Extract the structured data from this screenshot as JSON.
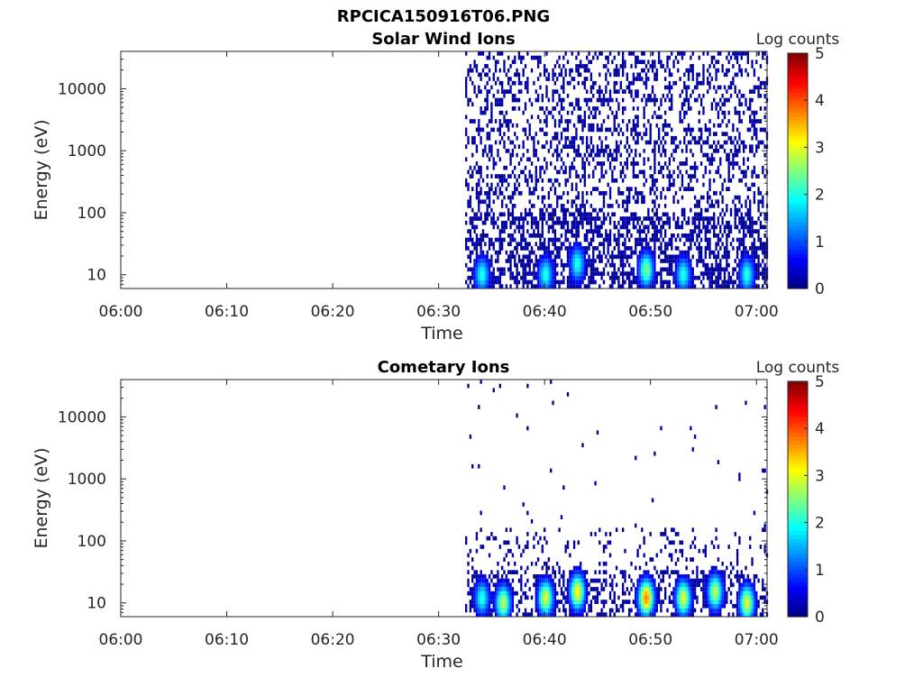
{
  "figure": {
    "title": "RPCICA150916T06.PNG"
  },
  "chart_data": [
    {
      "type": "heatmap",
      "title": "Solar Wind Ions",
      "xlabel": "Time",
      "ylabel": "Energy (eV)",
      "x_range": [
        "06:00",
        "07:01"
      ],
      "x_ticks": [
        "06:00",
        "06:10",
        "06:20",
        "06:30",
        "06:40",
        "06:50",
        "07:00"
      ],
      "y_scale": "log",
      "y_range": [
        6,
        40000
      ],
      "y_ticks": [
        "10",
        "100",
        "1000",
        "10000"
      ],
      "data_start": "06:32:30",
      "colorbar": {
        "label": "Log counts",
        "range": [
          0,
          5
        ],
        "ticks": [
          "0",
          "1",
          "2",
          "3",
          "4",
          "5"
        ]
      },
      "intensity_peaks": [
        {
          "time": "06:34",
          "energy_eV": 10,
          "log_counts": 2.0
        },
        {
          "time": "06:40",
          "energy_eV": 10,
          "log_counts": 2.0
        },
        {
          "time": "06:43",
          "energy_eV": 15,
          "log_counts": 2.0
        },
        {
          "time": "06:49.5",
          "energy_eV": 12,
          "log_counts": 2.5
        },
        {
          "time": "06:53",
          "energy_eV": 10,
          "log_counts": 2.0
        },
        {
          "time": "06:59",
          "energy_eV": 10,
          "log_counts": 2.0
        }
      ],
      "background_level_log_counts": 0.2,
      "grid": false
    },
    {
      "type": "heatmap",
      "title": "Cometary Ions",
      "xlabel": "Time",
      "ylabel": "Energy (eV)",
      "x_range": [
        "06:00",
        "07:01"
      ],
      "x_ticks": [
        "06:00",
        "06:10",
        "06:20",
        "06:30",
        "06:40",
        "06:50",
        "07:00"
      ],
      "y_scale": "log",
      "y_range": [
        6,
        40000
      ],
      "y_ticks": [
        "10",
        "100",
        "1000",
        "10000"
      ],
      "data_start": "06:32:30",
      "colorbar": {
        "label": "Log counts",
        "range": [
          0,
          5
        ],
        "ticks": [
          "0",
          "1",
          "2",
          "3",
          "4",
          "5"
        ]
      },
      "intensity_peaks": [
        {
          "time": "06:34",
          "energy_eV": 12,
          "log_counts": 2.0
        },
        {
          "time": "06:36",
          "energy_eV": 10,
          "log_counts": 2.8
        },
        {
          "time": "06:40",
          "energy_eV": 12,
          "log_counts": 3.0
        },
        {
          "time": "06:43",
          "energy_eV": 15,
          "log_counts": 3.2
        },
        {
          "time": "06:49.5",
          "energy_eV": 12,
          "log_counts": 3.8
        },
        {
          "time": "06:53",
          "energy_eV": 12,
          "log_counts": 3.0
        },
        {
          "time": "06:56",
          "energy_eV": 15,
          "log_counts": 2.8
        },
        {
          "time": "06:59",
          "energy_eV": 10,
          "log_counts": 3.0
        }
      ],
      "background_level_log_counts": 0.2,
      "grid": false
    }
  ]
}
